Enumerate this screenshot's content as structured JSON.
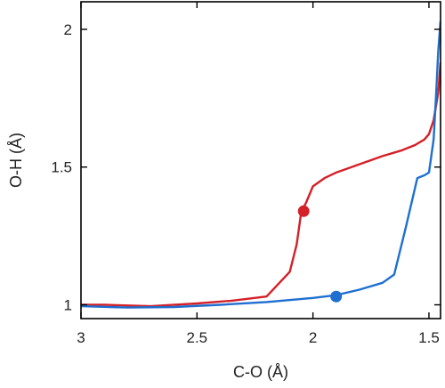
{
  "chart_data": {
    "type": "line",
    "title": "",
    "xlabel": "C-O (Å)",
    "ylabel": "O-H (Å)",
    "xlim": [
      3.0,
      1.45
    ],
    "ylim": [
      0.95,
      2.1
    ],
    "x_reversed": true,
    "xticks": [
      3,
      2.5,
      2,
      1.5
    ],
    "xtick_labels": [
      "3",
      "2.5",
      "2",
      "1.5"
    ],
    "yticks": [
      1,
      1.5,
      2
    ],
    "ytick_labels": [
      "1",
      "1.5",
      "2"
    ],
    "grid": false,
    "legend": "none",
    "series": [
      {
        "color": "#d42028",
        "x": [
          3.0,
          2.9,
          2.7,
          2.5,
          2.35,
          2.2,
          2.1,
          2.07,
          2.05,
          2.03,
          2.0,
          1.95,
          1.9,
          1.8,
          1.7,
          1.62,
          1.56,
          1.52,
          1.5,
          1.48,
          1.46,
          1.45
        ],
        "y": [
          1.0,
          1.0,
          0.995,
          1.005,
          1.015,
          1.03,
          1.12,
          1.22,
          1.34,
          1.37,
          1.43,
          1.46,
          1.48,
          1.51,
          1.54,
          1.56,
          1.58,
          1.6,
          1.62,
          1.67,
          1.77,
          1.88
        ]
      },
      {
        "color": "#1f6fd1",
        "x": [
          3.0,
          2.8,
          2.6,
          2.4,
          2.2,
          2.0,
          1.9,
          1.8,
          1.7,
          1.65,
          1.6,
          1.55,
          1.52,
          1.5,
          1.48,
          1.47,
          1.46,
          1.45
        ],
        "y": [
          0.995,
          0.99,
          0.992,
          1.0,
          1.01,
          1.025,
          1.035,
          1.055,
          1.08,
          1.11,
          1.28,
          1.46,
          1.47,
          1.48,
          1.6,
          1.75,
          1.92,
          2.03
        ]
      }
    ],
    "markers": [
      {
        "x": 2.04,
        "y": 1.34,
        "color": "#d42028"
      },
      {
        "x": 1.9,
        "y": 1.03,
        "color": "#1f6fd1"
      }
    ]
  }
}
